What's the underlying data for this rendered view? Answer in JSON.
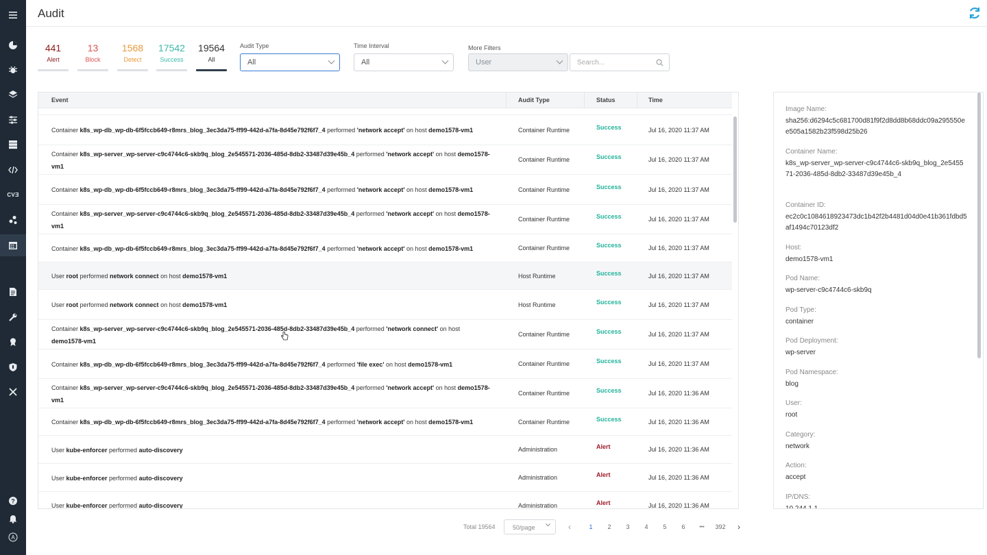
{
  "header": {
    "title": "Audit"
  },
  "counters": [
    {
      "num": "441",
      "label": "Alert",
      "color": "#8b1c1c"
    },
    {
      "num": "13",
      "label": "Block",
      "color": "#d9534f"
    },
    {
      "num": "1568",
      "label": "Detect",
      "color": "#e89a3c"
    },
    {
      "num": "17542",
      "label": "Success",
      "color": "#3bb8a8"
    },
    {
      "num": "19564",
      "label": "All",
      "color": "#333333"
    }
  ],
  "filters": {
    "audit_type": {
      "label": "Audit Type",
      "value": "All"
    },
    "time_interval": {
      "label": "Time Interval",
      "value": "All"
    },
    "more_filters": {
      "label": "More Filters",
      "value": "User",
      "search_placeholder": "Search..."
    }
  },
  "table": {
    "headers": {
      "event": "Event",
      "audit_type": "Audit Type",
      "status": "Status",
      "time": "Time"
    },
    "rows": [
      {
        "parts": [
          [
            "Container ",
            false
          ],
          [
            "k8s_wp-db_wp-db-6f5fccb649-r8mrs_blog_3ec3da75-ff99-442d-a7fa-8d45e792f6f7_4",
            true
          ],
          [
            " performed ",
            false
          ],
          [
            "'network accept'",
            true
          ],
          [
            " on host ",
            false
          ],
          [
            "demo1578-vm1",
            true
          ]
        ],
        "type": "Container Runtime",
        "status": "Success",
        "time": "Jul 16, 2020 11:37 AM"
      },
      {
        "parts": [
          [
            "Container ",
            false
          ],
          [
            "k8s_wp-server_wp-server-c9c4744c6-skb9q_blog_2e545571-2036-485d-8db2-33487d39e45b_4",
            true
          ],
          [
            " performed ",
            false
          ],
          [
            "'network accept'",
            true
          ],
          [
            " on host ",
            false
          ],
          [
            "demo1578-vm1",
            true
          ]
        ],
        "type": "Container Runtime",
        "status": "Success",
        "time": "Jul 16, 2020 11:37 AM"
      },
      {
        "parts": [
          [
            "Container ",
            false
          ],
          [
            "k8s_wp-db_wp-db-6f5fccb649-r8mrs_blog_3ec3da75-ff99-442d-a7fa-8d45e792f6f7_4",
            true
          ],
          [
            " performed ",
            false
          ],
          [
            "'network accept'",
            true
          ],
          [
            " on host ",
            false
          ],
          [
            "demo1578-vm1",
            true
          ]
        ],
        "type": "Container Runtime",
        "status": "Success",
        "time": "Jul 16, 2020 11:37 AM"
      },
      {
        "parts": [
          [
            "Container ",
            false
          ],
          [
            "k8s_wp-server_wp-server-c9c4744c6-skb9q_blog_2e545571-2036-485d-8db2-33487d39e45b_4",
            true
          ],
          [
            " performed ",
            false
          ],
          [
            "'network accept'",
            true
          ],
          [
            " on host ",
            false
          ],
          [
            "demo1578-vm1",
            true
          ]
        ],
        "type": "Container Runtime",
        "status": "Success",
        "time": "Jul 16, 2020 11:37 AM"
      },
      {
        "parts": [
          [
            "Container ",
            false
          ],
          [
            "k8s_wp-db_wp-db-6f5fccb649-r8mrs_blog_3ec3da75-ff99-442d-a7fa-8d45e792f6f7_4",
            true
          ],
          [
            " performed ",
            false
          ],
          [
            "'network accept'",
            true
          ],
          [
            " on host ",
            false
          ],
          [
            "demo1578-vm1",
            true
          ]
        ],
        "type": "Container Runtime",
        "status": "Success",
        "time": "Jul 16, 2020 11:37 AM"
      },
      {
        "parts": [
          [
            "User ",
            false
          ],
          [
            "root",
            true
          ],
          [
            " performed ",
            false
          ],
          [
            "network connect",
            true
          ],
          [
            " on host ",
            false
          ],
          [
            "demo1578-vm1",
            true
          ]
        ],
        "type": "Host Runtime",
        "status": "Success",
        "time": "Jul 16, 2020 11:37 AM"
      },
      {
        "parts": [
          [
            "User ",
            false
          ],
          [
            "root",
            true
          ],
          [
            " performed ",
            false
          ],
          [
            "network connect",
            true
          ],
          [
            " on host ",
            false
          ],
          [
            "demo1578-vm1",
            true
          ]
        ],
        "type": "Host Runtime",
        "status": "Success",
        "time": "Jul 16, 2020 11:37 AM"
      },
      {
        "parts": [
          [
            "Container ",
            false
          ],
          [
            "k8s_wp-server_wp-server-c9c4744c6-skb9q_blog_2e545571-2036-485d-8db2-33487d39e45b_4",
            true
          ],
          [
            " performed ",
            false
          ],
          [
            "'network connect'",
            true
          ],
          [
            " on host ",
            false
          ],
          [
            "demo1578-vm1",
            true
          ]
        ],
        "type": "Container Runtime",
        "status": "Success",
        "time": "Jul 16, 2020 11:37 AM"
      },
      {
        "parts": [
          [
            "Container ",
            false
          ],
          [
            "k8s_wp-db_wp-db-6f5fccb649-r8mrs_blog_3ec3da75-ff99-442d-a7fa-8d45e792f6f7_4",
            true
          ],
          [
            " performed ",
            false
          ],
          [
            "'file exec'",
            true
          ],
          [
            " on host ",
            false
          ],
          [
            "demo1578-vm1",
            true
          ]
        ],
        "type": "Container Runtime",
        "status": "Success",
        "time": "Jul 16, 2020 11:37 AM"
      },
      {
        "parts": [
          [
            "Container ",
            false
          ],
          [
            "k8s_wp-server_wp-server-c9c4744c6-skb9q_blog_2e545571-2036-485d-8db2-33487d39e45b_4",
            true
          ],
          [
            " performed ",
            false
          ],
          [
            "'network accept'",
            true
          ],
          [
            " on host ",
            false
          ],
          [
            "demo1578-vm1",
            true
          ]
        ],
        "type": "Container Runtime",
        "status": "Success",
        "time": "Jul 16, 2020 11:36 AM"
      },
      {
        "parts": [
          [
            "Container ",
            false
          ],
          [
            "k8s_wp-db_wp-db-6f5fccb649-r8mrs_blog_3ec3da75-ff99-442d-a7fa-8d45e792f6f7_4",
            true
          ],
          [
            " performed ",
            false
          ],
          [
            "'network accept'",
            true
          ],
          [
            " on host ",
            false
          ],
          [
            "demo1578-vm1",
            true
          ]
        ],
        "type": "Container Runtime",
        "status": "Success",
        "time": "Jul 16, 2020 11:36 AM"
      },
      {
        "parts": [
          [
            "User ",
            false
          ],
          [
            "kube-enforcer",
            true
          ],
          [
            " performed ",
            false
          ],
          [
            "auto-discovery",
            true
          ]
        ],
        "type": "Administration",
        "status": "Alert",
        "time": "Jul 16, 2020 11:36 AM"
      },
      {
        "parts": [
          [
            "User ",
            false
          ],
          [
            "kube-enforcer",
            true
          ],
          [
            " performed ",
            false
          ],
          [
            "auto-discovery",
            true
          ]
        ],
        "type": "Administration",
        "status": "Alert",
        "time": "Jul 16, 2020 11:36 AM"
      },
      {
        "parts": [
          [
            "User ",
            false
          ],
          [
            "kube-enforcer",
            true
          ],
          [
            " performed ",
            false
          ],
          [
            "auto-discovery",
            true
          ]
        ],
        "type": "Administration",
        "status": "Alert",
        "time": "Jul 16, 2020 11:36 AM"
      }
    ],
    "status_colors": {
      "Success": "#22b39a",
      "Alert": "#a11b2a"
    }
  },
  "pagination": {
    "total": "Total 19564",
    "page_size": "50/page",
    "pages": [
      "1",
      "2",
      "3",
      "4",
      "5",
      "6"
    ],
    "ellipsis": "•••",
    "last": "392",
    "current": "1"
  },
  "detail": [
    {
      "label": "Image Name:",
      "value": "sha256:d6294c5c681700d81f9f2d8dd8b68ddc09a295550ee505a1582b23f598d25b26"
    },
    {
      "label": "Container Name:",
      "value": "k8s_wp-server_wp-server-c9c4744c6-skb9q_blog_2e545571-2036-485d-8db2-33487d39e45b_4"
    },
    {
      "label": "Container ID:",
      "value": "ec2c0c1084618923473dc1b42f2b4481d04d0e41b361fdbd5af1494c70123df2"
    },
    {
      "label": "Host:",
      "value": "demo1578-vm1"
    },
    {
      "label": "Pod Name:",
      "value": "wp-server-c9c4744c6-skb9q"
    },
    {
      "label": "Pod Type:",
      "value": "container"
    },
    {
      "label": "Pod Deployment:",
      "value": "wp-server"
    },
    {
      "label": "Pod Namespace:",
      "value": "blog"
    },
    {
      "label": "User:",
      "value": "root"
    },
    {
      "label": "Category:",
      "value": "network"
    },
    {
      "label": "Action:",
      "value": "accept"
    },
    {
      "label": "IP/DNS:",
      "value": "10.244.1.1"
    }
  ],
  "sidebar": {
    "items": [
      "menu-icon",
      "dashboard-icon",
      "bug-icon",
      "layers-icon",
      "sliders-icon",
      "server-icon",
      "code-icon",
      "cve-text",
      "nodes-icon",
      "calendar-icon",
      "document-icon",
      "wrench-icon",
      "award-icon",
      "shield-icon",
      "tools-icon",
      "help-icon",
      "bell-icon",
      "logo-icon"
    ],
    "cve_label": "CVƎ",
    "logo_letter": "A"
  }
}
